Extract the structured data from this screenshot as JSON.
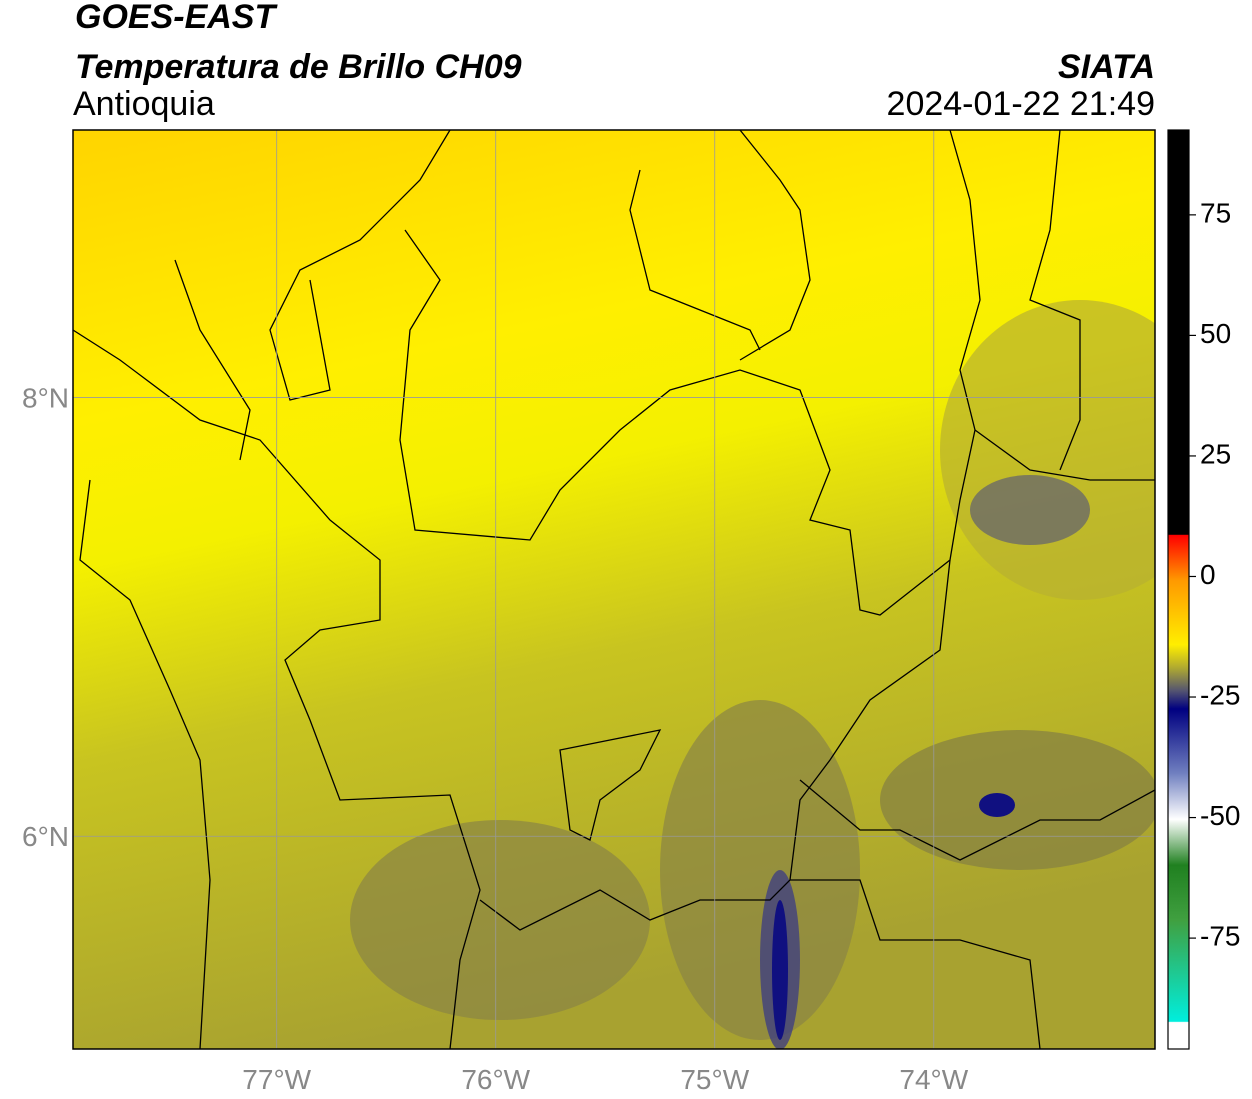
{
  "header": {
    "satellite": "GOES-EAST",
    "product": "Temperatura de Brillo CH09",
    "region": "Antioquia",
    "source": "SIATA",
    "datetime": "2024-01-22 21:49"
  },
  "map": {
    "lonlim": [
      -77.93,
      -72.99
    ],
    "latlim": [
      5.03,
      9.22
    ],
    "lon_ticks": [
      {
        "value": -77,
        "label": "77°W"
      },
      {
        "value": -76,
        "label": "76°W"
      },
      {
        "value": -75,
        "label": "75°W"
      },
      {
        "value": -74,
        "label": "74°W"
      }
    ],
    "lat_ticks": [
      {
        "value": 8,
        "label": "8°N"
      },
      {
        "value": 6,
        "label": "6°N"
      }
    ]
  },
  "colorbar": {
    "lim": [
      -98,
      92.6
    ],
    "ticks": [
      75,
      50,
      25,
      0,
      -25,
      -50,
      -75
    ]
  }
}
